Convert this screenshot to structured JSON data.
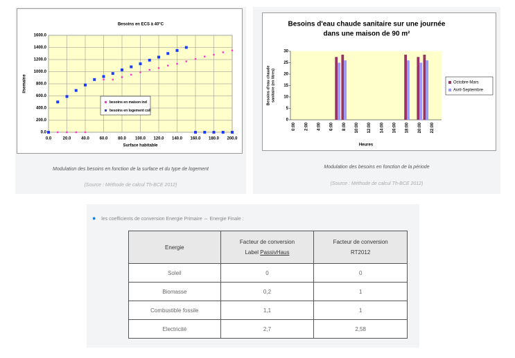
{
  "chart_data": [
    {
      "type": "scatter",
      "title": "Besoins en ECS à 40°C",
      "x_label": "Surface habitable",
      "y_label": "l/semaine",
      "x": [
        0,
        10,
        20,
        30,
        40,
        50,
        60,
        70,
        80,
        90,
        100,
        110,
        120,
        130,
        140,
        150,
        160,
        170,
        180,
        190,
        200
      ],
      "series": [
        {
          "name": "besoins en maison ind",
          "color": "#ff33cc",
          "values": [
            0,
            0,
            0,
            0,
            0,
            null,
            870,
            870,
            910,
            950,
            990,
            1030,
            1060,
            1100,
            1130,
            1170,
            1210,
            1250,
            1280,
            1320,
            1350
          ]
        },
        {
          "name": "besoins en logement coll",
          "color": "#1a3cff",
          "values": [
            0,
            500,
            590,
            690,
            780,
            870,
            920,
            970,
            1030,
            1080,
            1130,
            1190,
            1240,
            1300,
            1350,
            1400,
            0,
            0,
            0,
            0,
            0
          ]
        }
      ],
      "xlim": [
        0,
        200
      ],
      "xticks": [
        {
          "value": 0,
          "label": "0.0"
        },
        {
          "value": 20,
          "label": "20.0"
        },
        {
          "value": 40,
          "label": "40.0"
        },
        {
          "value": 60,
          "label": "60.0"
        },
        {
          "value": 80,
          "label": "80.0"
        },
        {
          "value": 100,
          "label": "100.0"
        },
        {
          "value": 120,
          "label": "120.0"
        },
        {
          "value": 140,
          "label": "140.0"
        },
        {
          "value": 160,
          "label": "160.0"
        },
        {
          "value": 180,
          "label": "180.0"
        },
        {
          "value": 200,
          "label": "200.0"
        }
      ],
      "ylim": [
        0,
        1600
      ],
      "yticks": [
        {
          "value": 0,
          "label": "0.0"
        },
        {
          "value": 200,
          "label": "200.0"
        },
        {
          "value": 400,
          "label": "400.0"
        },
        {
          "value": 600,
          "label": "600.0"
        },
        {
          "value": 800,
          "label": "800.0"
        },
        {
          "value": 1000,
          "label": "1000.0"
        },
        {
          "value": 1200,
          "label": "1200.0"
        },
        {
          "value": 1400,
          "label": "1400.0"
        },
        {
          "value": 1600,
          "label": "1600.0"
        }
      ],
      "grid": true
    },
    {
      "type": "bar",
      "title": [
        "Besoins d'eau chaude sanitaire sur une journée",
        "dans une maison de 90 m²"
      ],
      "x_label": "Heures",
      "y_label": [
        "Besoins d'eau chaude",
        "sanitaire (en litres)"
      ],
      "categories": [
        "0:00",
        null,
        "2:00",
        null,
        "4:00",
        null,
        "6:00",
        null,
        "8:00",
        null,
        "10:00",
        null,
        "12:00",
        null,
        "14:00",
        null,
        "16:00",
        null,
        "18:00",
        null,
        "20:00",
        null,
        "22:00",
        null
      ],
      "series": [
        {
          "name": "Octobre-Mars",
          "color": "#993366",
          "values": [
            0,
            0,
            0,
            0,
            0,
            0,
            0,
            27.5,
            28.5,
            0,
            0,
            0,
            0,
            0,
            0,
            0,
            0,
            0,
            28.5,
            0,
            27.5,
            28.5,
            0,
            0
          ]
        },
        {
          "name": "Avril-Septembre",
          "color": "#9999ff",
          "values": [
            0,
            0,
            0,
            0,
            0,
            0,
            0,
            25,
            26,
            0,
            0,
            0,
            0,
            0,
            0,
            0,
            0,
            0,
            26,
            0,
            25,
            26,
            0,
            0
          ]
        }
      ],
      "ylim": [
        0,
        30
      ],
      "yticks": [
        0,
        5,
        10,
        15,
        20,
        25,
        30
      ],
      "grid": false
    }
  ],
  "captions": [
    {
      "text": "Modulation des besoins en fonction de la surface et du type de logement",
      "source": "(Source : Méthode de calcul Th-BCE 2012)"
    },
    {
      "text": "Modulation des besoins en fonction de la période",
      "source": "(Source : Méthode de calcul Th-BCE 2012)"
    }
  ],
  "bullet": "les coefficients de conversion Energie Primaire ⇔ Energie Finale :",
  "table": {
    "header": [
      "Energie",
      [
        "Facteur de conversion",
        "Label ",
        "PassivHaus"
      ],
      [
        "Facteur de conversion",
        "RT2012"
      ]
    ],
    "rows": [
      [
        "Soleil",
        "0",
        "0"
      ],
      [
        "Biomasse",
        "0,2",
        "1"
      ],
      [
        "Combustible fossile",
        "1,1",
        "1"
      ],
      [
        "Electricité",
        "2,7",
        "2,58"
      ]
    ]
  }
}
